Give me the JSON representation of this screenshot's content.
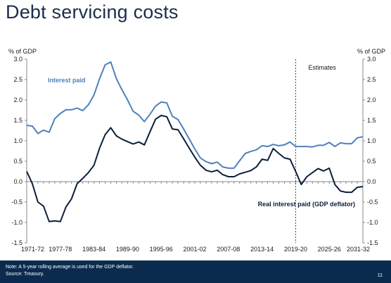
{
  "title": "Debt servicing costs",
  "footer": {
    "note": "Note: A 5-year rolling average is used for the GDP deflator.",
    "source": "Source: Treasury.",
    "page_number": "11"
  },
  "chart_data": {
    "type": "line",
    "ylabel_left": "% of GDP",
    "ylabel_right": "% of GDP",
    "ylim": [
      -1.5,
      3.0
    ],
    "yticks": [
      "3.0",
      "2.5",
      "2.0",
      "1.5",
      "1.0",
      "0.5",
      "0.0",
      "-0.5",
      "-1.0",
      "-1.5"
    ],
    "ytick_values": [
      3.0,
      2.5,
      2.0,
      1.5,
      1.0,
      0.5,
      0.0,
      -0.5,
      -1.0,
      -1.5
    ],
    "x_start_year": 1971,
    "x_tick_labels": [
      "1971-72",
      "1977-78",
      "1983-84",
      "1989-90",
      "1995-96",
      "2001-02",
      "2007-08",
      "2013-14",
      "2019-20",
      "2025-26",
      "2031-32"
    ],
    "estimates_label": "Estimates",
    "estimates_start": "2019-20",
    "grid": false,
    "colors": {
      "interest": "#4f81bd",
      "real": "#0b1f3a",
      "axis": "#888888",
      "divider": "#1a1a1a"
    },
    "series": [
      {
        "name": "Interest paid",
        "values": [
          1.38,
          1.36,
          1.18,
          1.26,
          1.21,
          1.54,
          1.67,
          1.76,
          1.76,
          1.8,
          1.74,
          1.88,
          2.12,
          2.52,
          2.86,
          2.93,
          2.52,
          2.25,
          2.0,
          1.72,
          1.63,
          1.47,
          1.65,
          1.85,
          1.95,
          1.93,
          1.6,
          1.52,
          1.29,
          1.05,
          0.8,
          0.58,
          0.49,
          0.44,
          0.48,
          0.36,
          0.33,
          0.33,
          0.51,
          0.69,
          0.74,
          0.78,
          0.88,
          0.86,
          0.91,
          0.88,
          0.9,
          0.97,
          0.86,
          0.86,
          0.86,
          0.85,
          0.89,
          0.89,
          0.96,
          0.86,
          0.95,
          0.93,
          0.93,
          1.07,
          1.1
        ]
      },
      {
        "name": "Real interest paid (GDP deflator)",
        "values": [
          0.25,
          -0.05,
          -0.5,
          -0.6,
          -0.98,
          -0.96,
          -0.98,
          -0.62,
          -0.42,
          -0.05,
          0.08,
          0.22,
          0.4,
          0.82,
          1.15,
          1.32,
          1.12,
          1.04,
          0.98,
          0.92,
          0.97,
          0.9,
          1.22,
          1.53,
          1.62,
          1.59,
          1.29,
          1.27,
          1.05,
          0.82,
          0.6,
          0.4,
          0.28,
          0.24,
          0.28,
          0.17,
          0.12,
          0.12,
          0.19,
          0.23,
          0.27,
          0.36,
          0.55,
          0.52,
          0.81,
          0.69,
          0.58,
          0.55,
          0.25,
          -0.07,
          0.12,
          0.22,
          0.32,
          0.26,
          0.33,
          -0.07,
          -0.23,
          -0.26,
          -0.26,
          -0.14,
          -0.12
        ]
      }
    ]
  }
}
